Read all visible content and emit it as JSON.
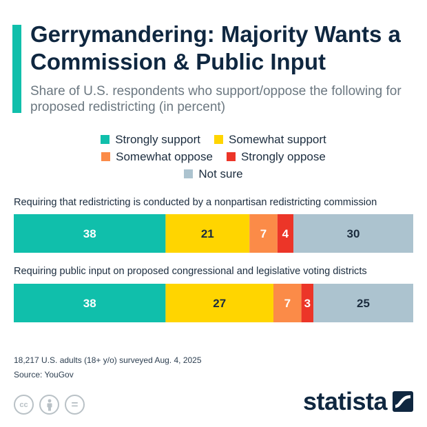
{
  "title": "Gerrymandering: Majority Wants a Commission & Public Input",
  "subtitle": "Share of U.S. respondents who support/oppose the following for proposed redistricting (in percent)",
  "legend": [
    {
      "label": "Strongly support",
      "color": "#10bfab"
    },
    {
      "label": "Somewhat support",
      "color": "#ffd500"
    },
    {
      "label": "Somewhat oppose",
      "color": "#fb8b48"
    },
    {
      "label": "Strongly oppose",
      "color": "#ec3528"
    },
    {
      "label": "Not sure",
      "color": "#acc3cf"
    }
  ],
  "chart_data": {
    "type": "bar",
    "orientation": "horizontal",
    "stacked": true,
    "categories": [
      "Requiring that redistricting is conducted by a nonpartisan redistricting commission",
      "Requiring public input on proposed congressional and legislative voting districts"
    ],
    "series": [
      {
        "name": "Strongly support",
        "color": "#10bfab",
        "values": [
          38,
          38
        ]
      },
      {
        "name": "Somewhat support",
        "color": "#ffd500",
        "values": [
          21,
          27
        ]
      },
      {
        "name": "Somewhat oppose",
        "color": "#fb8b48",
        "values": [
          7,
          7
        ]
      },
      {
        "name": "Strongly oppose",
        "color": "#ec3528",
        "values": [
          4,
          3
        ]
      },
      {
        "name": "Not sure",
        "color": "#acc3cf",
        "values": [
          30,
          25
        ]
      }
    ],
    "xlim": [
      0,
      100
    ],
    "legend_position": "top"
  },
  "footer": {
    "note": "18,217 U.S. adults (18+ y/o) surveyed Aug. 4, 2025",
    "source": "Source: YouGov",
    "brand": "statista"
  },
  "icons": [
    "cc-icon",
    "by-icon",
    "nd-icon",
    "statista-logo-icon"
  ],
  "cc_icons": [
    {
      "name": "cc-icon",
      "glyph": "cc"
    },
    {
      "name": "by-icon",
      "glyph": ""
    },
    {
      "name": "nd-icon",
      "glyph": "="
    }
  ]
}
